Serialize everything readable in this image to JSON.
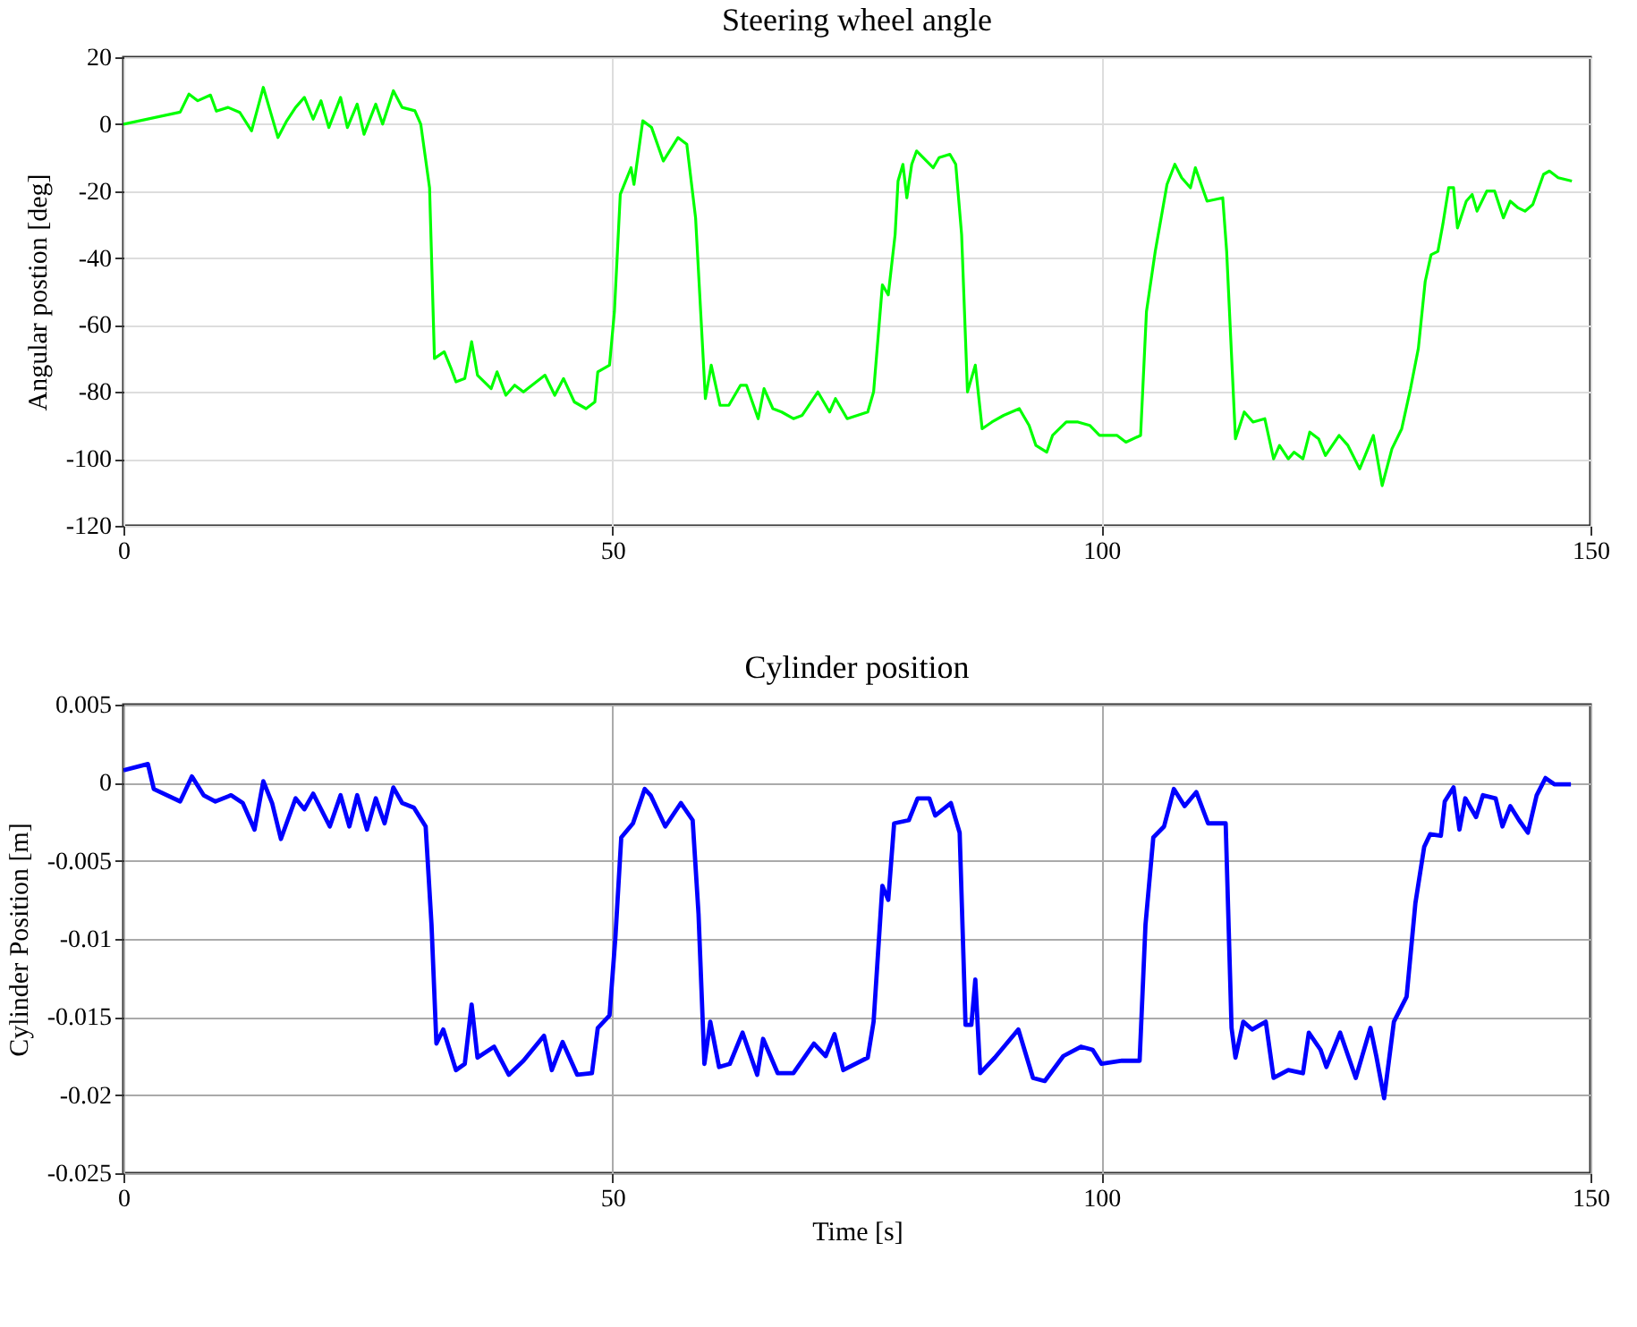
{
  "chart_data": [
    {
      "type": "line",
      "title": "Steering wheel angle",
      "ylabel": "Angular postion [deg]",
      "xlim": [
        0,
        150
      ],
      "xticks": [
        0,
        50,
        100,
        150
      ],
      "ylim": [
        -120,
        20
      ],
      "yticks": [
        -120,
        -100,
        -80,
        -60,
        -40,
        -20,
        0,
        20
      ],
      "grid": true,
      "x": [
        0,
        5.8,
        6.7,
        7.6,
        8.9,
        9.5,
        10.7,
        11.9,
        13.1,
        14.3,
        14.9,
        15.8,
        16.7,
        17.6,
        18.5,
        19.4,
        20.2,
        21,
        22.2,
        22.9,
        23.9,
        24.6,
        25.8,
        26.5,
        27.6,
        28.5,
        29.8,
        30.4,
        31.3,
        31.8,
        32.8,
        33.5,
        34,
        34.9,
        35.6,
        36.2,
        37.6,
        38.2,
        39.1,
        40,
        40.9,
        43.1,
        44.1,
        45,
        46.1,
        47.3,
        48.2,
        48.5,
        49.7,
        50.2,
        50.8,
        51.9,
        52.2,
        53.1,
        54,
        55.2,
        56.7,
        57.6,
        58.5,
        59.5,
        60.1,
        61,
        61.9,
        63.1,
        63.7,
        64.9,
        65.5,
        66.4,
        67.3,
        68.5,
        69.4,
        71,
        72.2,
        72.8,
        74,
        76.1,
        76.7,
        77.6,
        78.2,
        78.9,
        79.2,
        79.7,
        80.1,
        80.6,
        81.1,
        82.8,
        83.4,
        84.5,
        85.1,
        85.7,
        86.3,
        87.1,
        87.8,
        88.8,
        90,
        91.6,
        92.6,
        93.3,
        94.4,
        95,
        96.4,
        97.6,
        98.8,
        99.8,
        101.6,
        102.5,
        104,
        104.6,
        105.5,
        106.1,
        106.7,
        107.5,
        108.2,
        109.1,
        109.6,
        110.8,
        112.4,
        112.8,
        113.7,
        114.6,
        115.5,
        116.7,
        117.6,
        118.2,
        119.1,
        119.7,
        120.6,
        121.3,
        122.2,
        122.9,
        124.3,
        125.2,
        126.4,
        127.8,
        128.7,
        129.7,
        130.7,
        131.6,
        132.4,
        133.1,
        133.7,
        134.4,
        134.9,
        135.5,
        136,
        136.4,
        137.3,
        137.9,
        138.4,
        139.4,
        140.2,
        141.1,
        141.8,
        142.6,
        143.3,
        144.1,
        145.2,
        145.8,
        146.7,
        148.1
      ],
      "series": [
        {
          "color": "#00ff00",
          "values": [
            0,
            3.6,
            9,
            7,
            8.7,
            3.9,
            5,
            3.5,
            -2,
            11,
            5,
            -4,
            1,
            5,
            8,
            1.5,
            7,
            -1,
            8,
            -1,
            6,
            -3,
            6,
            0,
            10,
            5,
            4,
            0,
            -19,
            -70,
            -68,
            -73,
            -77,
            -76,
            -65,
            -75,
            -79,
            -74,
            -81,
            -78,
            -80,
            -75,
            -81,
            -76,
            -83,
            -85,
            -83,
            -74,
            -72,
            -56,
            -21,
            -13,
            -18,
            1,
            -1,
            -11,
            -4,
            -6,
            -28,
            -82,
            -72,
            -84,
            -84,
            -78,
            -78,
            -88,
            -79,
            -85,
            -86,
            -88,
            -87,
            -80,
            -86,
            -82,
            -88,
            -86,
            -80,
            -48,
            -51,
            -33,
            -17,
            -12,
            -22,
            -12,
            -8,
            -13,
            -10,
            -9,
            -12,
            -33,
            -80,
            -72,
            -91,
            -89,
            -87,
            -85,
            -90,
            -96,
            -98,
            -93,
            -89,
            -89,
            -90,
            -93,
            -93,
            -95,
            -93,
            -56,
            -38,
            -28,
            -18,
            -12,
            -16,
            -19,
            -13,
            -23,
            -22,
            -38,
            -94,
            -86,
            -89,
            -88,
            -100,
            -96,
            -100,
            -98,
            -100,
            -92,
            -94,
            -99,
            -93,
            -96,
            -103,
            -93,
            -108,
            -97,
            -91,
            -79,
            -67,
            -47,
            -39,
            -38,
            -30,
            -19,
            -19,
            -31,
            -23,
            -21,
            -26,
            -20,
            -20,
            -28,
            -23,
            -25,
            -26,
            -24,
            -15,
            -14,
            -16,
            -17
          ]
        }
      ]
    },
    {
      "type": "line",
      "title": "Cylinder position",
      "xlabel": "Time [s]",
      "ylabel": "Cylinder Position [m]",
      "xlim": [
        0,
        150
      ],
      "xticks": [
        0,
        50,
        100,
        150
      ],
      "ylim": [
        -0.025,
        0.005
      ],
      "yticks": [
        -0.025,
        -0.02,
        -0.015,
        -0.01,
        -0.005,
        0,
        0.005
      ],
      "grid": true,
      "x": [
        0,
        2.5,
        3.1,
        5.8,
        7,
        8.2,
        9.4,
        11,
        12.2,
        13.4,
        14.3,
        15.2,
        16.1,
        17.6,
        18.5,
        19.4,
        21.1,
        22.2,
        23.1,
        23.9,
        24.9,
        25.8,
        26.7,
        27.6,
        28.5,
        29.7,
        30.9,
        31.5,
        32,
        32.7,
        34,
        34.9,
        35.6,
        36.2,
        37.9,
        39.4,
        40.9,
        43,
        43.8,
        44.9,
        46.4,
        47.9,
        48.5,
        49.7,
        50.3,
        50.9,
        52.1,
        53.3,
        53.9,
        55.4,
        57,
        58.2,
        58.8,
        59.4,
        60,
        60.9,
        62,
        63.3,
        64.8,
        65.4,
        66.9,
        68.5,
        70.6,
        71.8,
        72.7,
        73.6,
        76.1,
        76.7,
        77.6,
        78.2,
        78.8,
        80.3,
        81.2,
        82.4,
        83,
        84.6,
        85.5,
        86.1,
        86.7,
        87.1,
        87.6,
        89.1,
        90.3,
        91.5,
        93,
        94.2,
        96.1,
        97.9,
        99.1,
        100,
        102.1,
        103.9,
        104.5,
        105.3,
        106.4,
        107.4,
        108.5,
        109.7,
        110.9,
        112.7,
        113.3,
        113.7,
        114.5,
        115.4,
        116.8,
        117.6,
        119.1,
        120.6,
        121.2,
        122.4,
        123,
        124.4,
        126,
        127.5,
        128.1,
        128.9,
        129.9,
        131.2,
        132.1,
        133,
        133.6,
        134.7,
        135.1,
        136,
        136.6,
        137.2,
        138.3,
        139,
        140.3,
        141,
        141.8,
        142.7,
        143.6,
        144.5,
        145.4,
        146.3,
        148
      ],
      "series": [
        {
          "color": "#0000ff",
          "values": [
            0.0008,
            0.0012,
            -0.0004,
            -0.0012,
            0.0004,
            -0.0008,
            -0.0012,
            -0.0008,
            -0.0013,
            -0.003,
            0.0001,
            -0.0013,
            -0.0036,
            -0.001,
            -0.0017,
            -0.0007,
            -0.0028,
            -0.0008,
            -0.0028,
            -0.0008,
            -0.003,
            -0.001,
            -0.0026,
            -0.0003,
            -0.0013,
            -0.0016,
            -0.0028,
            -0.0091,
            -0.0167,
            -0.0158,
            -0.0184,
            -0.018,
            -0.0142,
            -0.0176,
            -0.0169,
            -0.0187,
            -0.0178,
            -0.0162,
            -0.0184,
            -0.0166,
            -0.0187,
            -0.0186,
            -0.0157,
            -0.0149,
            -0.0099,
            -0.0035,
            -0.0026,
            -0.0004,
            -0.0008,
            -0.0028,
            -0.0013,
            -0.0024,
            -0.0084,
            -0.018,
            -0.0153,
            -0.0182,
            -0.018,
            -0.016,
            -0.0187,
            -0.0164,
            -0.0186,
            -0.0186,
            -0.0167,
            -0.0175,
            -0.0161,
            -0.0184,
            -0.0176,
            -0.0153,
            -0.0066,
            -0.0075,
            -0.0026,
            -0.0024,
            -0.001,
            -0.001,
            -0.0021,
            -0.0013,
            -0.0032,
            -0.0155,
            -0.0155,
            -0.0126,
            -0.0186,
            -0.0176,
            -0.0167,
            -0.0158,
            -0.0189,
            -0.0191,
            -0.0175,
            -0.0169,
            -0.0171,
            -0.018,
            -0.0178,
            -0.0178,
            -0.0091,
            -0.0035,
            -0.0028,
            -0.0004,
            -0.0015,
            -0.0006,
            -0.0026,
            -0.0026,
            -0.0157,
            -0.0176,
            -0.0153,
            -0.0158,
            -0.0153,
            -0.0189,
            -0.0184,
            -0.0186,
            -0.016,
            -0.0171,
            -0.0182,
            -0.016,
            -0.0189,
            -0.0157,
            -0.0175,
            -0.0202,
            -0.0153,
            -0.0137,
            -0.0077,
            -0.0041,
            -0.0033,
            -0.0034,
            -0.0012,
            -0.0003,
            -0.003,
            -0.001,
            -0.0022,
            -0.0008,
            -0.001,
            -0.0028,
            -0.0015,
            -0.0024,
            -0.0032,
            -0.0008,
            0.0003,
            -0.0001,
            -0.0001
          ]
        }
      ]
    }
  ]
}
